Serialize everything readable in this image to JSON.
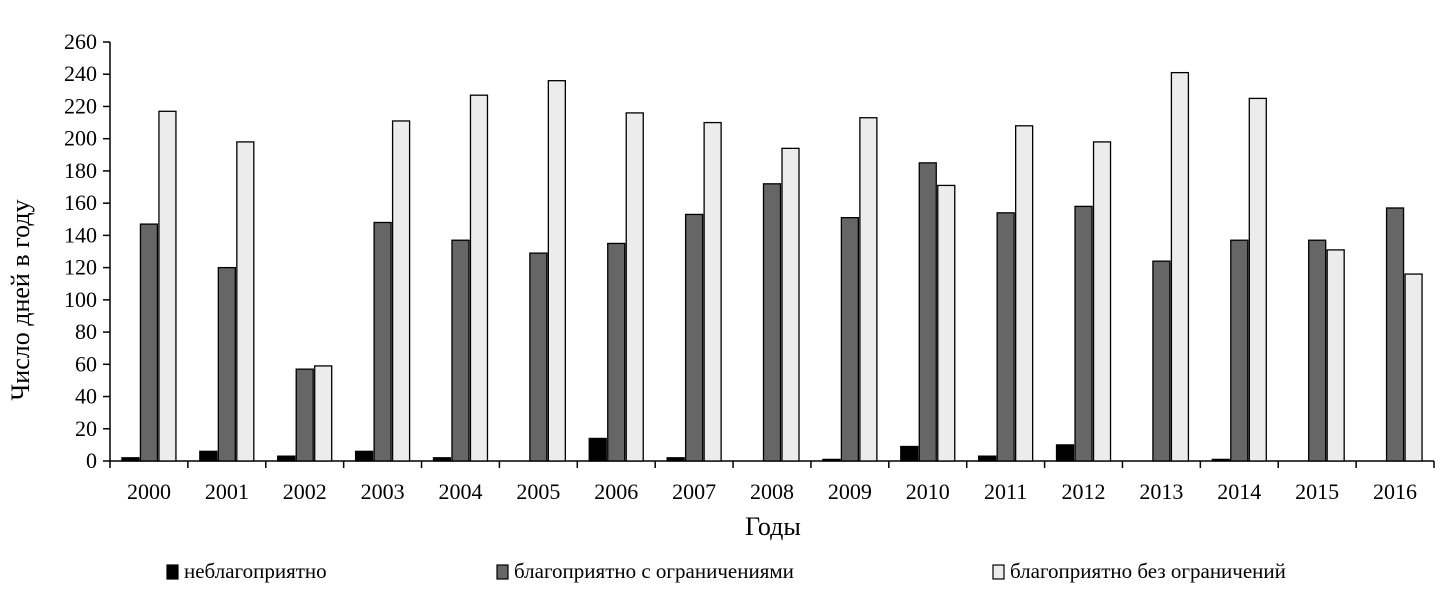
{
  "chart_data": {
    "type": "bar",
    "title": "",
    "xlabel": "Годы",
    "ylabel": "Число дней в году",
    "ylim": [
      0,
      260
    ],
    "yticks": [
      0,
      20,
      40,
      60,
      80,
      100,
      120,
      140,
      160,
      180,
      200,
      220,
      240,
      260
    ],
    "yticks_text": [
      "0",
      "20",
      "40",
      "60",
      "80",
      "100",
      "120",
      "140",
      "160",
      "180",
      "200",
      "220",
      "240",
      "260"
    ],
    "grid": false,
    "legend_position": "bottom",
    "categories": [
      "2000",
      "2001",
      "2002",
      "2003",
      "2004",
      "2005",
      "2006",
      "2007",
      "2008",
      "2009",
      "2010",
      "2011",
      "2012",
      "2013",
      "2014",
      "2015",
      "2016"
    ],
    "series": [
      {
        "name": "неблагоприятно",
        "color": "#000000",
        "values": [
          2,
          6,
          3,
          6,
          2,
          0,
          14,
          2,
          0,
          1,
          9,
          3,
          10,
          0,
          1,
          0,
          0
        ]
      },
      {
        "name": "благоприятно с ограничениями",
        "color": "#666666",
        "values": [
          147,
          120,
          57,
          148,
          137,
          129,
          135,
          153,
          172,
          151,
          185,
          154,
          158,
          124,
          137,
          137,
          157
        ]
      },
      {
        "name": "благоприятно без ограничений",
        "color": "#ececec",
        "values": [
          217,
          198,
          59,
          211,
          227,
          236,
          216,
          210,
          194,
          213,
          171,
          208,
          198,
          241,
          225,
          131,
          116
        ]
      }
    ]
  }
}
